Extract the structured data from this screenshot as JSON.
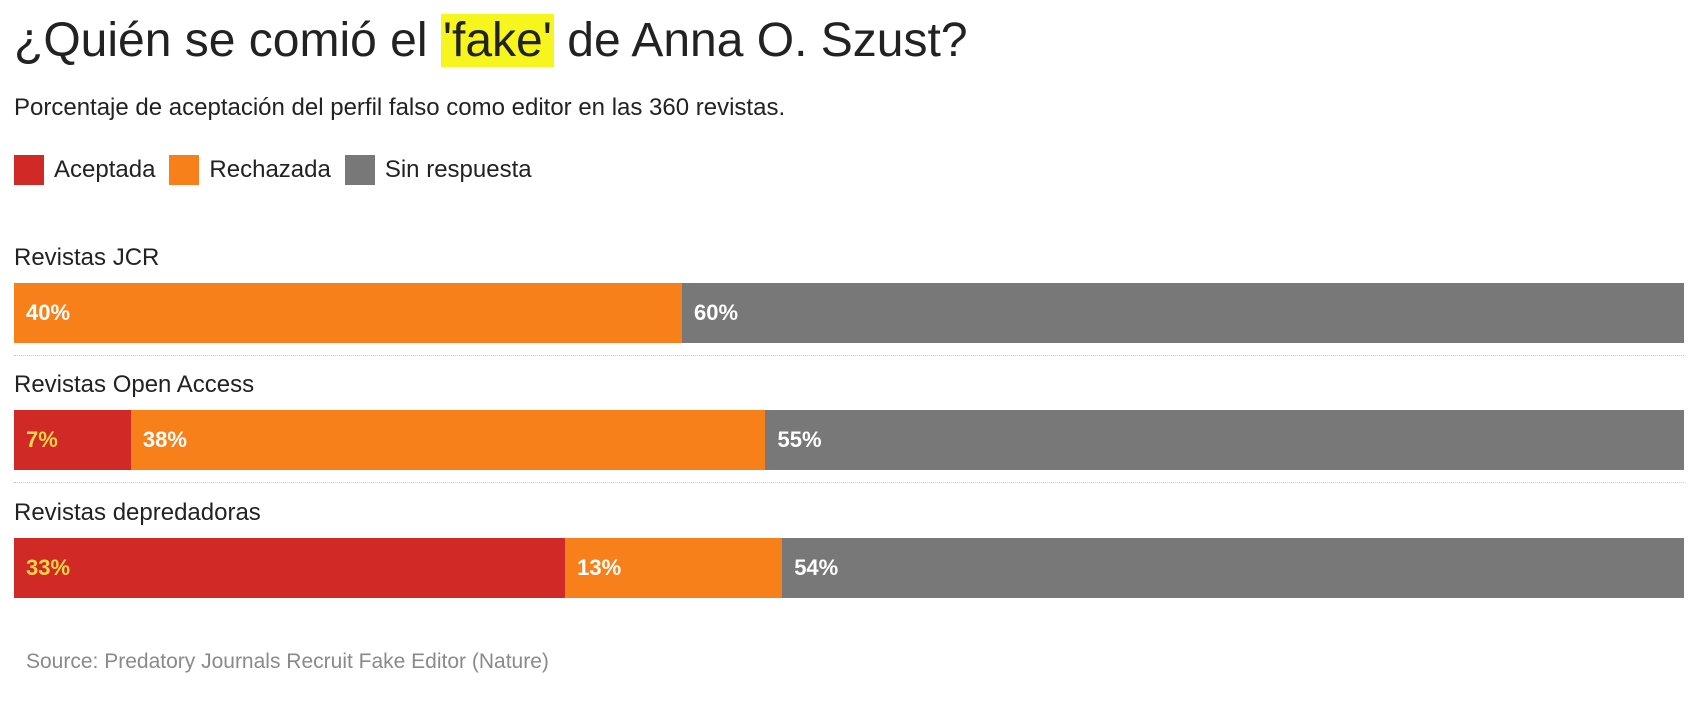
{
  "title": {
    "before": "¿Quién se comió el ",
    "highlight": "'fake'",
    "after": " de Anna O. Szust?"
  },
  "subtitle": "Porcentaje de aceptación del perfil falso como editor en las 360 revistas.",
  "source": "Source: Predatory Journals Recruit Fake Editor (Nature)",
  "colors": {
    "aceptada": "#d12a26",
    "rechazada": "#f8801b",
    "sin_respuesta": "#787878",
    "highlight": "#f7f51e"
  },
  "chart_data": {
    "type": "bar",
    "orientation": "horizontal",
    "stacked": "percent",
    "categories": [
      "Revistas JCR",
      "Revistas Open Access",
      "Revistas depredadoras"
    ],
    "series": [
      {
        "name": "Aceptada",
        "key": "aceptada",
        "values": [
          0,
          7,
          33
        ]
      },
      {
        "name": "Rechazada",
        "key": "rechazada",
        "values": [
          40,
          38,
          13
        ]
      },
      {
        "name": "Sin respuesta",
        "key": "sin_respuesta",
        "values": [
          60,
          55,
          54
        ]
      }
    ],
    "value_suffix": "%",
    "legend": "top-left",
    "grid": false
  }
}
